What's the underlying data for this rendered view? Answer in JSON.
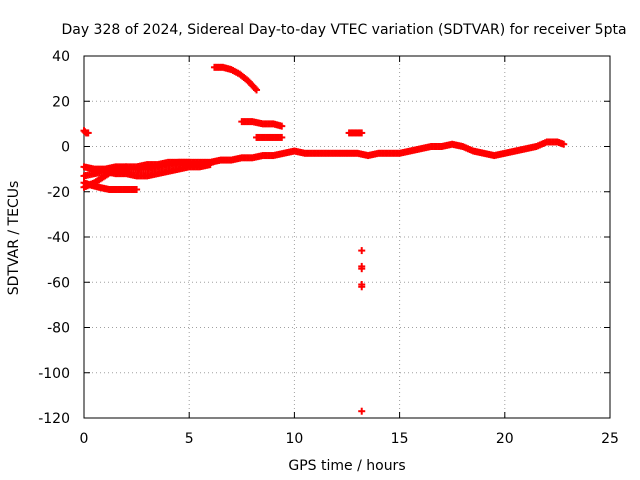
{
  "chart_data": {
    "type": "scatter",
    "title": "Day 328 of 2024, Sidereal Day-to-day VTEC variation (SDTVAR) for receiver 5pta",
    "xlabel": "GPS time / hours",
    "ylabel": "SDTVAR / TECUs",
    "xlim": [
      0,
      25
    ],
    "ylim": [
      -120,
      40
    ],
    "xticks": [
      0,
      5,
      10,
      15,
      20,
      25
    ],
    "yticks": [
      -120,
      -100,
      -80,
      -60,
      -40,
      -20,
      0,
      20,
      40
    ],
    "grid": true,
    "marker": "+",
    "color": "#ff0000",
    "series": [
      {
        "name": "main-trend",
        "points": [
          [
            0.0,
            -9
          ],
          [
            0.5,
            -10
          ],
          [
            1.0,
            -10
          ],
          [
            1.5,
            -9
          ],
          [
            2.0,
            -9
          ],
          [
            2.5,
            -9
          ],
          [
            3.0,
            -8
          ],
          [
            3.5,
            -8
          ],
          [
            4.0,
            -7
          ],
          [
            4.5,
            -7
          ],
          [
            5.0,
            -7
          ],
          [
            5.5,
            -7
          ],
          [
            6.0,
            -7
          ],
          [
            6.5,
            -6
          ],
          [
            7.0,
            -6
          ],
          [
            7.5,
            -5
          ],
          [
            8.0,
            -5
          ],
          [
            8.5,
            -4
          ],
          [
            9.0,
            -4
          ],
          [
            9.5,
            -3
          ],
          [
            10.0,
            -2
          ],
          [
            10.5,
            -3
          ],
          [
            11.0,
            -3
          ],
          [
            11.5,
            -3
          ],
          [
            12.0,
            -3
          ],
          [
            12.5,
            -3
          ],
          [
            13.0,
            -3
          ],
          [
            13.5,
            -4
          ],
          [
            14.0,
            -3
          ],
          [
            14.5,
            -3
          ],
          [
            15.0,
            -3
          ],
          [
            15.5,
            -2
          ],
          [
            16.0,
            -1
          ],
          [
            16.5,
            0
          ],
          [
            17.0,
            0
          ],
          [
            17.5,
            1
          ],
          [
            18.0,
            0
          ],
          [
            18.5,
            -2
          ],
          [
            19.0,
            -3
          ],
          [
            19.5,
            -4
          ],
          [
            20.0,
            -3
          ],
          [
            20.5,
            -2
          ],
          [
            21.0,
            -1
          ],
          [
            21.5,
            0
          ],
          [
            22.0,
            2
          ],
          [
            22.5,
            2
          ],
          [
            22.8,
            1
          ]
        ]
      },
      {
        "name": "lower-branch",
        "points": [
          [
            0.0,
            -16
          ],
          [
            0.3,
            -17
          ],
          [
            0.7,
            -18
          ],
          [
            1.2,
            -19
          ],
          [
            1.7,
            -19
          ],
          [
            2.1,
            -19
          ],
          [
            2.5,
            -19
          ]
        ]
      },
      {
        "name": "diagonal-branch",
        "points": [
          [
            0.0,
            -18
          ],
          [
            0.5,
            -16
          ],
          [
            1.0,
            -13
          ],
          [
            1.5,
            -10
          ],
          [
            2.0,
            -9
          ]
        ]
      },
      {
        "name": "upper-band",
        "points": [
          [
            0.0,
            -13
          ],
          [
            1.0,
            -11
          ],
          [
            2.0,
            -10
          ],
          [
            3.0,
            -10
          ],
          [
            3.5,
            -9
          ],
          [
            4.0,
            -8
          ],
          [
            4.5,
            -7
          ],
          [
            5.0,
            -7
          ]
        ]
      },
      {
        "name": "falling-band",
        "points": [
          [
            1.0,
            -11
          ],
          [
            1.5,
            -12
          ],
          [
            2.0,
            -12
          ],
          [
            2.5,
            -13
          ],
          [
            3.0,
            -13
          ],
          [
            3.5,
            -12
          ],
          [
            4.0,
            -11
          ],
          [
            4.5,
            -10
          ],
          [
            5.0,
            -9
          ],
          [
            5.5,
            -9
          ],
          [
            6.0,
            -8
          ]
        ]
      },
      {
        "name": "early-cluster",
        "points": [
          [
            0.0,
            7
          ],
          [
            0.1,
            6
          ],
          [
            0.2,
            6
          ]
        ]
      },
      {
        "name": "high-arc",
        "points": [
          [
            6.2,
            35
          ],
          [
            6.6,
            35
          ],
          [
            7.0,
            34
          ],
          [
            7.4,
            32
          ],
          [
            7.8,
            29
          ],
          [
            8.2,
            25
          ]
        ]
      },
      {
        "name": "mid-band",
        "points": [
          [
            7.5,
            11
          ],
          [
            8.0,
            11
          ],
          [
            8.5,
            10
          ],
          [
            9.0,
            10
          ],
          [
            9.4,
            9
          ]
        ]
      },
      {
        "name": "small-band",
        "points": [
          [
            8.2,
            4
          ],
          [
            8.6,
            4
          ],
          [
            9.0,
            4
          ],
          [
            9.4,
            4
          ]
        ]
      },
      {
        "name": "cluster-13h",
        "points": [
          [
            12.6,
            6
          ],
          [
            12.8,
            6
          ],
          [
            13.0,
            6
          ],
          [
            13.2,
            6
          ]
        ]
      },
      {
        "name": "outliers",
        "points": [
          [
            13.2,
            -46
          ],
          [
            13.2,
            -53
          ],
          [
            13.2,
            -54
          ],
          [
            13.2,
            -61
          ],
          [
            13.2,
            -62
          ],
          [
            13.2,
            -117
          ]
        ]
      }
    ]
  }
}
